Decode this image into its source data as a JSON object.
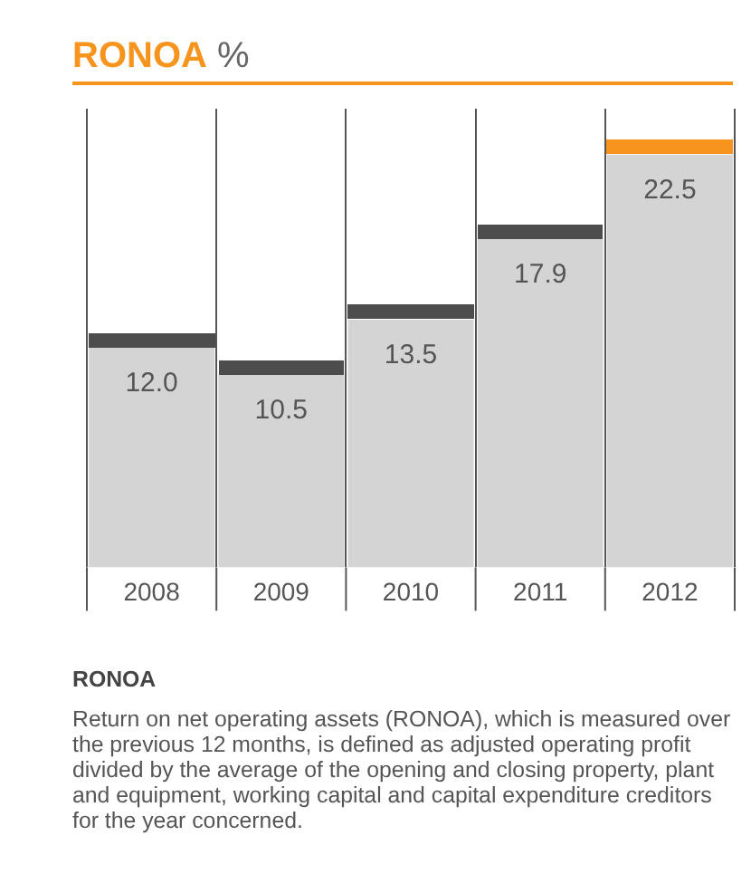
{
  "chart_data": {
    "type": "bar",
    "title": "RONOA %",
    "categories": [
      "2008",
      "2009",
      "2010",
      "2011",
      "2012"
    ],
    "values": [
      12.0,
      10.5,
      13.5,
      17.9,
      22.5
    ],
    "color": "#d4d4d4",
    "ylim": [
      0,
      25
    ],
    "value_labels": [
      "12.0",
      "10.5",
      "13.5",
      "17.9",
      "22.5"
    ],
    "grid": "x",
    "legend": false,
    "annotations": [
      "RONOA",
      "Return on net operating assets (RONOA), which is measured over the previous 12 months, is defined as adjusted operating profit divided by the average of the opening and closing property, plant and equipment, working capital and capital expenditure creditors for the year concerned."
    ]
  }
}
